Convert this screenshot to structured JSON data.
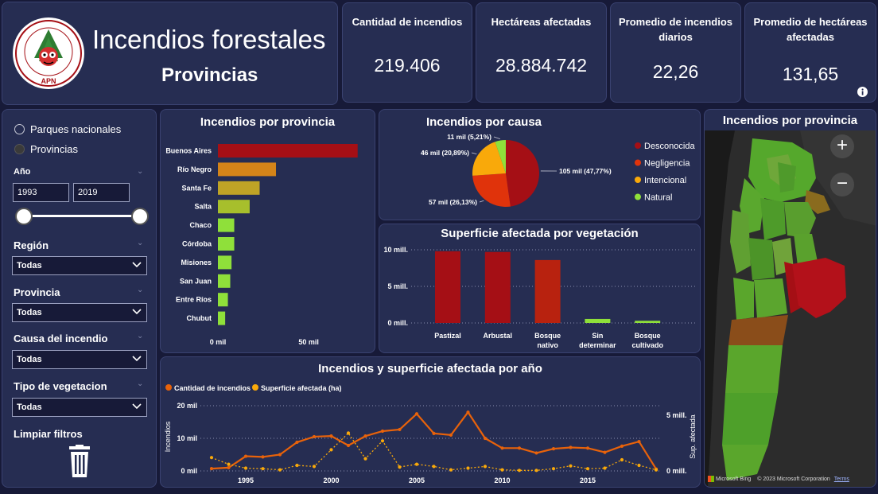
{
  "header": {
    "title": "Incendios forestales",
    "subtitle": "Provincias",
    "logo_text": "APN",
    "logo_ring_text": "DIRECCIÓN NACIONAL DE LUCHA CONTRA INCENDIOS FORESTALES"
  },
  "kpis": [
    {
      "label": "Cantidad de incendios",
      "value": "219.406"
    },
    {
      "label": "Hectáreas afectadas",
      "value": "28.884.742"
    },
    {
      "label": "Promedio de incendios diarios",
      "value": "22,26"
    },
    {
      "label": "Promedio de hectáreas afectadas",
      "value": "131,65"
    }
  ],
  "info_icon": "info-icon",
  "filters": {
    "radio_options": [
      "Parques nacionales",
      "Provincias"
    ],
    "year_label": "Año",
    "year_from": "1993",
    "year_to": "2019",
    "region_label": "Región",
    "region_value": "Todas",
    "provincia_label": "Provincia",
    "provincia_value": "Todas",
    "causa_label": "Causa del incendio",
    "causa_value": "Todas",
    "vegetacion_label": "Tipo de vegetacion",
    "vegetacion_value": "Todas",
    "clear_label": "Limpiar filtros"
  },
  "map": {
    "title": "Incendios por provincia",
    "zoom_in": "+",
    "zoom_out": "−",
    "attribution_bing": "Microsoft Bing",
    "attribution_copy": "© 2023 Microsoft Corporation",
    "attribution_terms": "Terms"
  },
  "chart_data": [
    {
      "id": "bar_provincia",
      "type": "bar",
      "orientation": "horizontal",
      "title": "Incendios por provincia",
      "categories": [
        "Buenos Aires",
        "Río Negro",
        "Santa Fe",
        "Salta",
        "Chaco",
        "Córdoba",
        "Misiones",
        "San Juan",
        "Entre Ríos",
        "Chubut"
      ],
      "values": [
        77000,
        32000,
        23000,
        17500,
        9000,
        9000,
        7500,
        6800,
        5500,
        4000
      ],
      "colors": [
        "#a50f15",
        "#d48419",
        "#bfa326",
        "#a7bf2c",
        "#8fe03a",
        "#8fe03a",
        "#8fe03a",
        "#8fe03a",
        "#8fe03a",
        "#8fe03a"
      ],
      "xticks": [
        "0 mil",
        "50 mil"
      ],
      "xtick_values": [
        0,
        50000
      ],
      "xlim": [
        0,
        78000
      ]
    },
    {
      "id": "pie_causa",
      "type": "pie",
      "title": "Incendios por causa",
      "slices": [
        {
          "name": "Desconocida",
          "value": 47.77,
          "label": "105 mil (47,77%)",
          "color": "#a50f15"
        },
        {
          "name": "Negligencia",
          "value": 26.13,
          "label": "57 mil (26,13%)",
          "color": "#e0330b"
        },
        {
          "name": "Intencional",
          "value": 20.89,
          "label": "46 mil (20,89%)",
          "color": "#f9a90a"
        },
        {
          "name": "Natural",
          "value": 5.21,
          "label": "11 mil (5,21%)",
          "color": "#8fe03a"
        }
      ],
      "legend_position": "right"
    },
    {
      "id": "bar_vegetacion",
      "type": "bar",
      "title": "Superficie afectada por vegetación",
      "categories": [
        "Pastizal",
        "Arbustal",
        "Bosque nativo",
        "Sin determinar",
        "Bosque cultivado"
      ],
      "category_lines": [
        [
          "Pastizal"
        ],
        [
          "Arbustal"
        ],
        [
          "Bosque",
          "nativo"
        ],
        [
          "Sin",
          "determinar"
        ],
        [
          "Bosque",
          "cultivado"
        ]
      ],
      "values": [
        9800000,
        9700000,
        8600000,
        550000,
        300000
      ],
      "colors": [
        "#a50f15",
        "#a50f15",
        "#b8220f",
        "#8fe03a",
        "#8fe03a"
      ],
      "yticks": [
        "0 mill.",
        "5 mill.",
        "10 mill."
      ],
      "ytick_values": [
        0,
        5000000,
        10000000
      ],
      "ylim": [
        0,
        10000000
      ]
    },
    {
      "id": "line_anio",
      "type": "line",
      "title": "Incendios y superficie afectada por año",
      "x": [
        1993,
        1994,
        1995,
        1996,
        1997,
        1998,
        1999,
        2000,
        2001,
        2002,
        2003,
        2004,
        2005,
        2006,
        2007,
        2008,
        2009,
        2010,
        2011,
        2012,
        2013,
        2014,
        2015,
        2016,
        2017,
        2018,
        2019
      ],
      "series": [
        {
          "name": "Cantidad de incendios",
          "axis": "left",
          "color": "#e8620a",
          "style": "solid",
          "values": [
            700,
            1000,
            4500,
            4300,
            5000,
            8800,
            10500,
            10700,
            7800,
            10700,
            12200,
            12700,
            17500,
            11500,
            11000,
            18000,
            10000,
            7000,
            7000,
            5500,
            6800,
            7200,
            7000,
            5700,
            7600,
            9000,
            600
          ]
        },
        {
          "name": "Superficie afectada (ha)",
          "axis": "right",
          "color": "#f9a90a",
          "style": "dotted",
          "values": [
            1200000,
            600000,
            250000,
            200000,
            100000,
            500000,
            400000,
            1900000,
            3400000,
            1100000,
            2700000,
            350000,
            600000,
            400000,
            100000,
            250000,
            400000,
            100000,
            50000,
            50000,
            200000,
            450000,
            200000,
            250000,
            1000000,
            500000,
            100000
          ]
        }
      ],
      "xticks": [
        1995,
        2000,
        2005,
        2010,
        2015
      ],
      "ylabel_left": "Incendios",
      "ylabel_right": "Sup. afectada",
      "yticks_left": [
        "0 mil",
        "10 mil",
        "20 mil"
      ],
      "yticks_left_values": [
        0,
        10000,
        20000
      ],
      "yticks_right": [
        "0 mill.",
        "5 mill."
      ],
      "yticks_right_values": [
        0,
        5000000
      ],
      "ylim_left": [
        0,
        20000
      ],
      "ylim_right": [
        0,
        5000000
      ],
      "legend_position": "top-left"
    }
  ]
}
